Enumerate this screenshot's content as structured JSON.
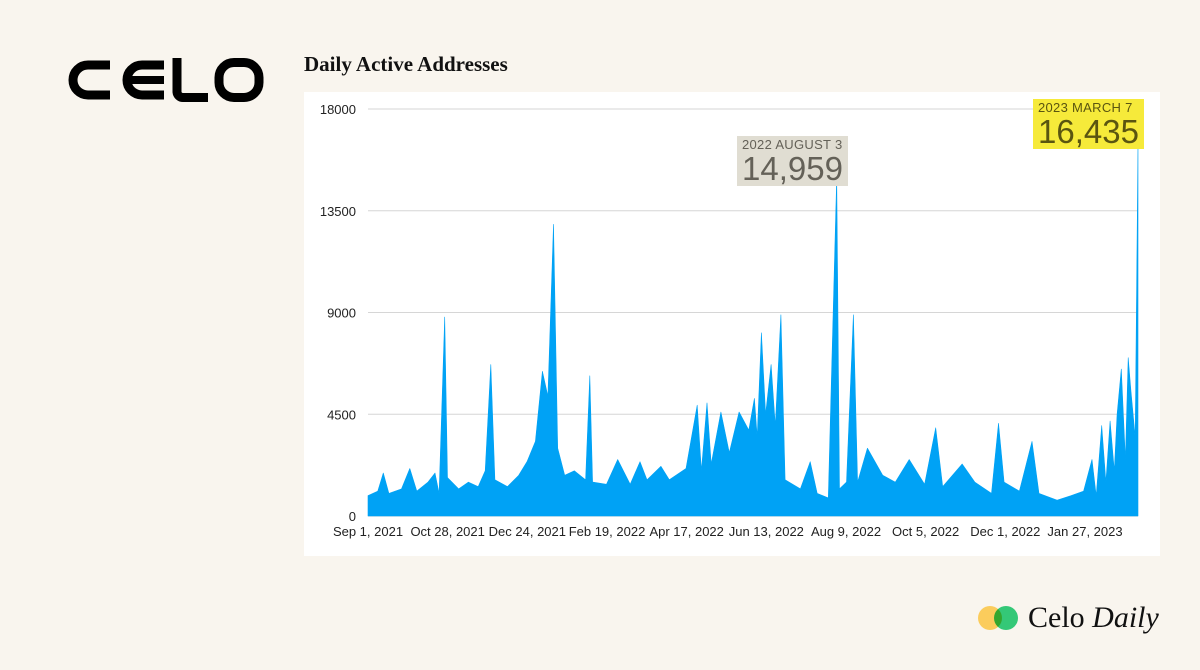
{
  "logo": {
    "text": "CELO"
  },
  "chart_data": {
    "type": "area",
    "title": "Daily Active Addresses",
    "xlabel": "",
    "ylabel": "",
    "ylim": [
      0,
      18000
    ],
    "yticks": [
      0,
      4500,
      9000,
      13500,
      18000
    ],
    "x_tick_labels": [
      "Sep 1, 2021",
      "Oct 28, 2021",
      "Dec 24, 2021",
      "Feb 19, 2022",
      "Apr 17, 2022",
      "Jun 13, 2022",
      "Aug 9, 2022",
      "Oct 5, 2022",
      "Dec 1, 2022",
      "Jan 27, 2023"
    ],
    "x_start": "2021-09-01",
    "x_end": "2023-03-07",
    "grid": true,
    "color": "#00a2f5",
    "series": [
      {
        "points": [
          [
            "2021-09-01",
            900
          ],
          [
            "2021-09-08",
            1100
          ],
          [
            "2021-09-12",
            1900
          ],
          [
            "2021-09-16",
            1000
          ],
          [
            "2021-09-25",
            1200
          ],
          [
            "2021-10-01",
            2100
          ],
          [
            "2021-10-06",
            1100
          ],
          [
            "2021-10-14",
            1500
          ],
          [
            "2021-10-19",
            1900
          ],
          [
            "2021-10-22",
            1000
          ],
          [
            "2021-10-26",
            8800
          ],
          [
            "2021-10-28",
            1700
          ],
          [
            "2021-11-05",
            1200
          ],
          [
            "2021-11-12",
            1500
          ],
          [
            "2021-11-19",
            1300
          ],
          [
            "2021-11-24",
            2000
          ],
          [
            "2021-11-28",
            6700
          ],
          [
            "2021-12-01",
            1600
          ],
          [
            "2021-12-10",
            1300
          ],
          [
            "2021-12-18",
            1800
          ],
          [
            "2021-12-24",
            2400
          ],
          [
            "2021-12-30",
            3300
          ],
          [
            "2022-01-04",
            6400
          ],
          [
            "2022-01-08",
            5300
          ],
          [
            "2022-01-12",
            12900
          ],
          [
            "2022-01-15",
            3000
          ],
          [
            "2022-01-20",
            1800
          ],
          [
            "2022-01-27",
            2000
          ],
          [
            "2022-02-04",
            1600
          ],
          [
            "2022-02-07",
            6200
          ],
          [
            "2022-02-09",
            1500
          ],
          [
            "2022-02-19",
            1400
          ],
          [
            "2022-02-27",
            2500
          ],
          [
            "2022-03-08",
            1400
          ],
          [
            "2022-03-15",
            2400
          ],
          [
            "2022-03-20",
            1600
          ],
          [
            "2022-03-30",
            2200
          ],
          [
            "2022-04-05",
            1600
          ],
          [
            "2022-04-17",
            2100
          ],
          [
            "2022-04-25",
            4900
          ],
          [
            "2022-04-28",
            2000
          ],
          [
            "2022-05-02",
            5000
          ],
          [
            "2022-05-05",
            2300
          ],
          [
            "2022-05-12",
            4600
          ],
          [
            "2022-05-18",
            2800
          ],
          [
            "2022-05-25",
            4600
          ],
          [
            "2022-06-01",
            3800
          ],
          [
            "2022-06-05",
            5200
          ],
          [
            "2022-06-07",
            3500
          ],
          [
            "2022-06-10",
            8100
          ],
          [
            "2022-06-13",
            4500
          ],
          [
            "2022-06-17",
            6700
          ],
          [
            "2022-06-20",
            4000
          ],
          [
            "2022-06-24",
            8900
          ],
          [
            "2022-06-27",
            1600
          ],
          [
            "2022-07-08",
            1200
          ],
          [
            "2022-07-15",
            2400
          ],
          [
            "2022-07-20",
            1000
          ],
          [
            "2022-07-28",
            800
          ],
          [
            "2022-08-03",
            14959
          ],
          [
            "2022-08-05",
            1200
          ],
          [
            "2022-08-10",
            1500
          ],
          [
            "2022-08-15",
            8900
          ],
          [
            "2022-08-18",
            1500
          ],
          [
            "2022-08-25",
            3000
          ],
          [
            "2022-09-05",
            1800
          ],
          [
            "2022-09-14",
            1500
          ],
          [
            "2022-09-24",
            2500
          ],
          [
            "2022-10-05",
            1400
          ],
          [
            "2022-10-13",
            3900
          ],
          [
            "2022-10-18",
            1300
          ],
          [
            "2022-11-01",
            2300
          ],
          [
            "2022-11-10",
            1500
          ],
          [
            "2022-11-22",
            1000
          ],
          [
            "2022-11-27",
            4100
          ],
          [
            "2022-12-01",
            1500
          ],
          [
            "2022-12-12",
            1100
          ],
          [
            "2022-12-21",
            3300
          ],
          [
            "2022-12-26",
            1000
          ],
          [
            "2023-01-08",
            700
          ],
          [
            "2023-01-18",
            900
          ],
          [
            "2023-01-27",
            1100
          ],
          [
            "2023-02-02",
            2500
          ],
          [
            "2023-02-05",
            900
          ],
          [
            "2023-02-09",
            4000
          ],
          [
            "2023-02-12",
            1500
          ],
          [
            "2023-02-15",
            4200
          ],
          [
            "2023-02-18",
            2000
          ],
          [
            "2023-02-20",
            4500
          ],
          [
            "2023-02-23",
            6500
          ],
          [
            "2023-02-26",
            2500
          ],
          [
            "2023-02-28",
            7000
          ],
          [
            "2023-03-02",
            5500
          ],
          [
            "2023-03-05",
            3500
          ],
          [
            "2023-03-07",
            16435
          ]
        ]
      }
    ],
    "annotations": [
      {
        "date_label": "2022 AUGUST 3",
        "value_label": "14,959",
        "bg": "#e0ddd2"
      },
      {
        "date_label": "2023 MARCH 7",
        "value_label": "16,435",
        "bg": "#f6ea3a"
      }
    ]
  },
  "brand": {
    "word": "Celo",
    "italic_word": "Daily",
    "colors": [
      "#fbcc5c",
      "#35d07f"
    ]
  }
}
